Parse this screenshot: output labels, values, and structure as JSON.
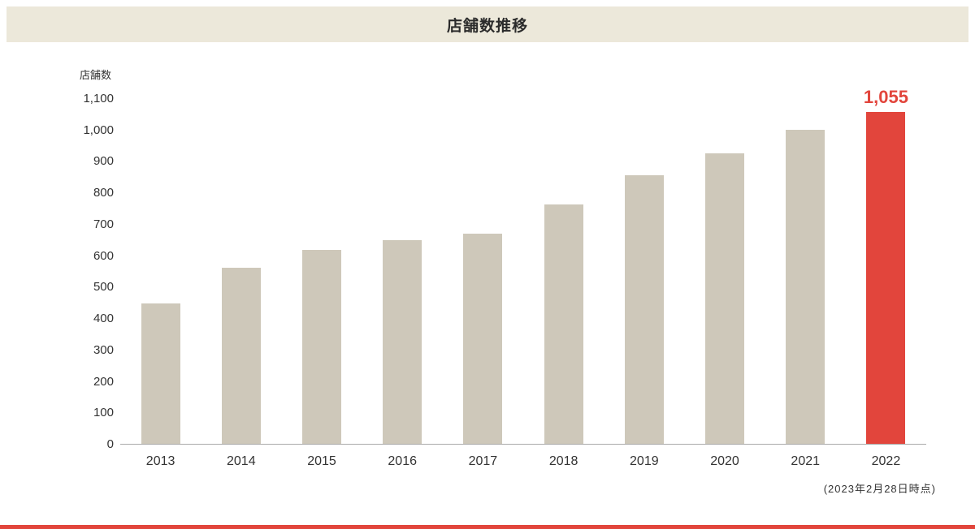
{
  "header": {
    "title": "店舗数推移"
  },
  "chart_data": {
    "type": "bar",
    "title": "店舗数推移",
    "xlabel": "",
    "ylabel": "店舗数",
    "categories": [
      "2013",
      "2014",
      "2015",
      "2016",
      "2017",
      "2018",
      "2019",
      "2020",
      "2021",
      "2022"
    ],
    "values": [
      448,
      560,
      618,
      648,
      670,
      762,
      855,
      925,
      1000,
      1055
    ],
    "ylim": [
      0,
      1100
    ],
    "ytick_interval": 100,
    "ytick_labels": [
      "0",
      "100",
      "200",
      "300",
      "400",
      "500",
      "600",
      "700",
      "800",
      "900",
      "1,000",
      "1,100"
    ],
    "grid": false,
    "legend": false,
    "highlight_index": 9,
    "highlight_label": "1,055",
    "footnote": "(2023年2月28日時点)"
  },
  "colors": {
    "header_bg": "#ece8da",
    "bar": "#cec8ba",
    "highlight": "#e2453c",
    "axis": "#a9a9a9",
    "text": "#333333",
    "bottom_strip": "#e2453c"
  }
}
